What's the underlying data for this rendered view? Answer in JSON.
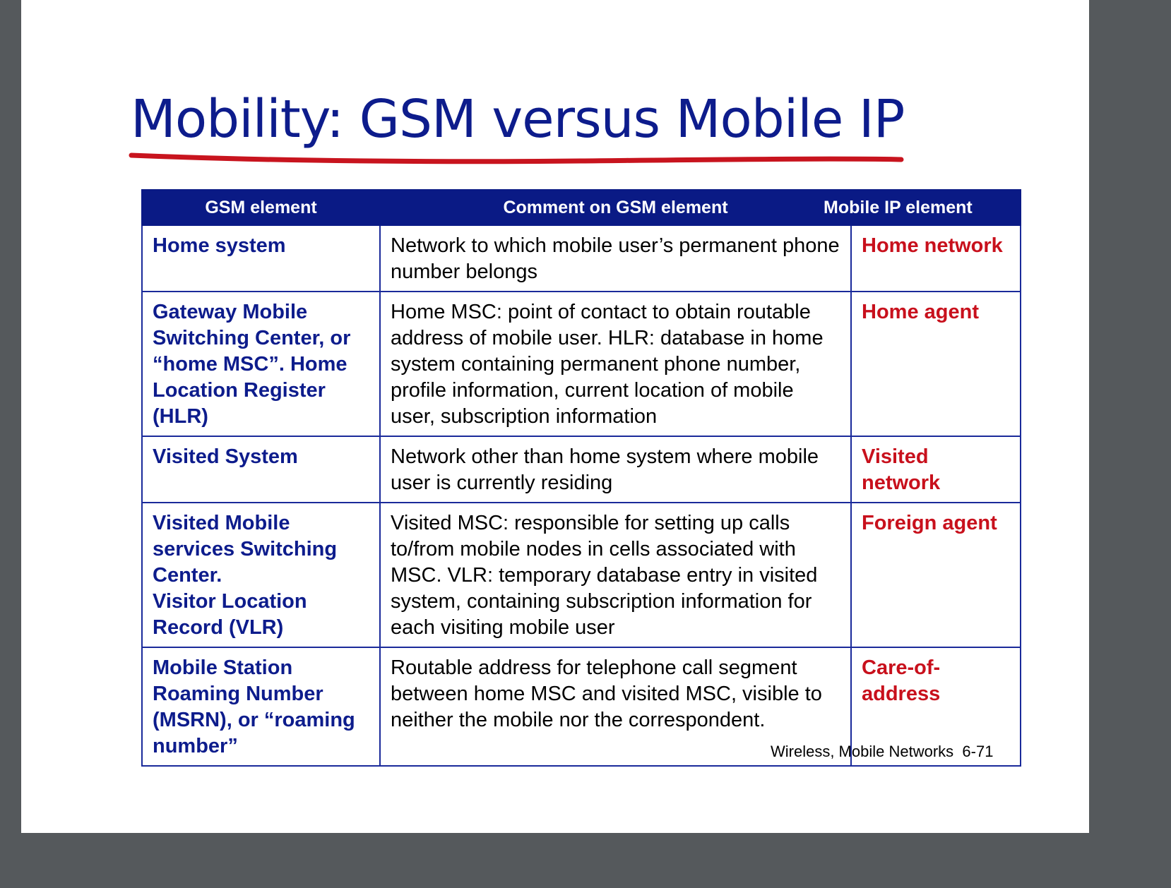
{
  "slide": {
    "title": "Mobility: GSM versus Mobile IP",
    "footer": "Wireless, Mobile Networks  6-71",
    "colors": {
      "title": "#0d1c8c",
      "underline": "#c8141e",
      "header_bg": "#0a1a85",
      "gsm_text": "#0d1c8c",
      "mobile_ip_text": "#c8101c",
      "border": "#1a2a9a"
    }
  },
  "table": {
    "headers": [
      "GSM element",
      "Comment on GSM element",
      "Mobile IP element"
    ],
    "rows": [
      {
        "gsm": "Home system",
        "comment": "Network to which mobile user’s permanent phone number belongs",
        "mobile_ip": "Home network"
      },
      {
        "gsm": "Gateway Mobile Switching Center, or “home MSC”. Home Location Register (HLR)",
        "comment": "Home MSC: point of contact to obtain routable address of mobile user. HLR: database in home system containing  permanent phone number, profile information, current location of mobile user, subscription information",
        "mobile_ip": "Home agent"
      },
      {
        "gsm": "Visited System",
        "comment": "Network other than home system where mobile user is currently residing",
        "mobile_ip": "Visited network"
      },
      {
        "gsm": "Visited Mobile services Switching Center.\nVisitor Location Record (VLR)",
        "comment": "Visited MSC: responsible for setting up calls to/from mobile nodes in cells associated with MSC. VLR: temporary database entry in visited system, containing subscription information  for each visiting mobile user",
        "mobile_ip": "Foreign agent"
      },
      {
        "gsm": "Mobile Station Roaming Number (MSRN), or “roaming number”",
        "comment": "Routable address for telephone call segment between home MSC and  visited MSC, visible to neither the mobile nor the correspondent.",
        "mobile_ip": "Care-of-address"
      }
    ]
  }
}
